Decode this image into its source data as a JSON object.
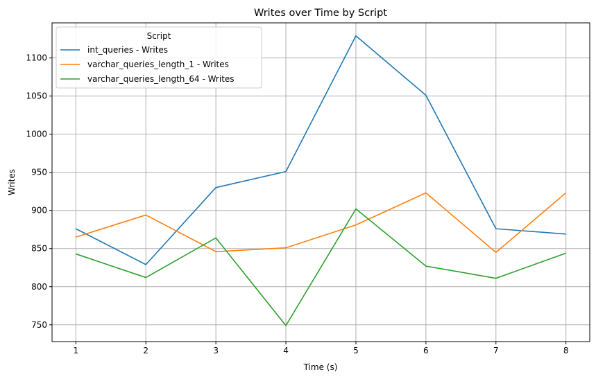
{
  "chart_data": {
    "type": "line",
    "title": "Writes over Time by Script",
    "xlabel": "Time (s)",
    "ylabel": "Writes",
    "x": [
      1,
      2,
      3,
      4,
      5,
      6,
      7,
      8
    ],
    "xticks": [
      "1",
      "2",
      "3",
      "4",
      "5",
      "6",
      "7",
      "8"
    ],
    "yticks": [
      750,
      800,
      850,
      900,
      950,
      1000,
      1050,
      1100
    ],
    "ylim": [
      728,
      1146
    ],
    "xlim": [
      0.66,
      8.34
    ],
    "grid": true,
    "legend": {
      "title": "Script",
      "placement": "top-left"
    },
    "series": [
      {
        "name": "int_queries - Writes",
        "color": "#1f77b4",
        "values": [
          876,
          829,
          930,
          951,
          1129,
          1051,
          876,
          869
        ]
      },
      {
        "name": "varchar_queries_length_1 - Writes",
        "color": "#ff7f0e",
        "values": [
          865,
          894,
          846,
          851,
          881,
          923,
          845,
          923
        ]
      },
      {
        "name": "varchar_queries_length_64 - Writes",
        "color": "#2ca02c",
        "values": [
          843,
          812,
          864,
          749,
          902,
          827,
          811,
          844
        ]
      }
    ]
  }
}
